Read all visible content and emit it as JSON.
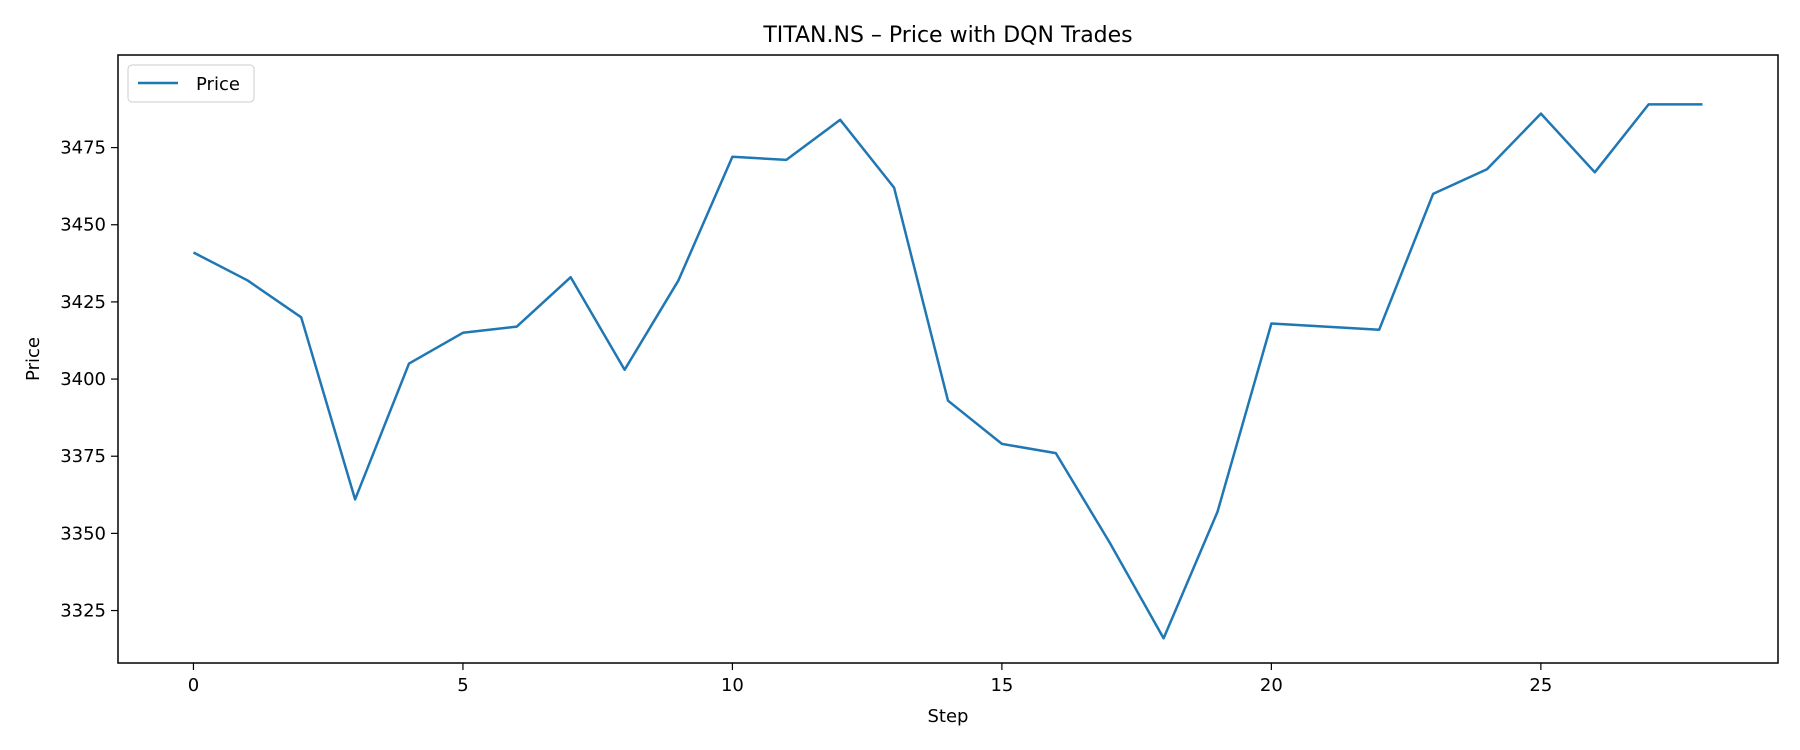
{
  "chart_data": {
    "type": "line",
    "title": "TITAN.NS – Price with DQN Trades",
    "xlabel": "Step",
    "ylabel": "Price",
    "xlim": [
      -1.4,
      29.4
    ],
    "ylim": [
      3308,
      3505
    ],
    "xticks": [
      0,
      5,
      10,
      15,
      20,
      25
    ],
    "yticks": [
      3325,
      3350,
      3375,
      3400,
      3425,
      3450,
      3475
    ],
    "grid": false,
    "legend_position": "top-left",
    "series": [
      {
        "name": "Price",
        "color": "#1f77b4",
        "x": [
          0,
          1,
          2,
          3,
          4,
          5,
          6,
          7,
          8,
          9,
          10,
          11,
          12,
          13,
          14,
          15,
          16,
          17,
          18,
          19,
          20,
          21,
          22,
          23,
          24,
          25,
          26,
          27,
          28
        ],
        "values": [
          3441,
          3432,
          3420,
          3361,
          3405,
          3415,
          3417,
          3433,
          3403,
          3432,
          3472,
          3471,
          3484,
          3462,
          3393,
          3379,
          3376,
          3347,
          3316,
          3357,
          3418,
          3417,
          3416,
          3460,
          3468,
          3486,
          3467,
          3489,
          3489
        ]
      }
    ]
  }
}
